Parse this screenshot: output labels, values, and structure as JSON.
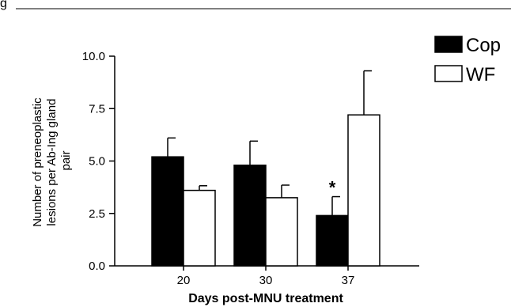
{
  "figure_label": "g",
  "chart_data": {
    "type": "bar",
    "categories": [
      "20",
      "30",
      "37"
    ],
    "series": [
      {
        "name": "Cop",
        "color": "#000000",
        "values": [
          5.2,
          4.8,
          2.4
        ],
        "errors": [
          0.9,
          1.15,
          0.9
        ]
      },
      {
        "name": "WF",
        "color": "#ffffff",
        "values": [
          3.6,
          3.25,
          7.2
        ],
        "errors": [
          0.22,
          0.6,
          2.1
        ]
      }
    ],
    "ylim": [
      0,
      10
    ],
    "yticks": [
      "0.0",
      "2.5",
      "5.0",
      "7.5",
      "10.0"
    ],
    "ytick_values": [
      0,
      2.5,
      5,
      7.5,
      10
    ],
    "ylabel_lines": [
      "Number of preneoplastic",
      "lesions per Ab-Ing gland",
      "pair"
    ],
    "xlabel": "Days post-MNU treatment",
    "annotations": [
      {
        "text": "*",
        "category": "37",
        "series": "Cop"
      }
    ],
    "legend_position": "top-right",
    "grid": false
  }
}
